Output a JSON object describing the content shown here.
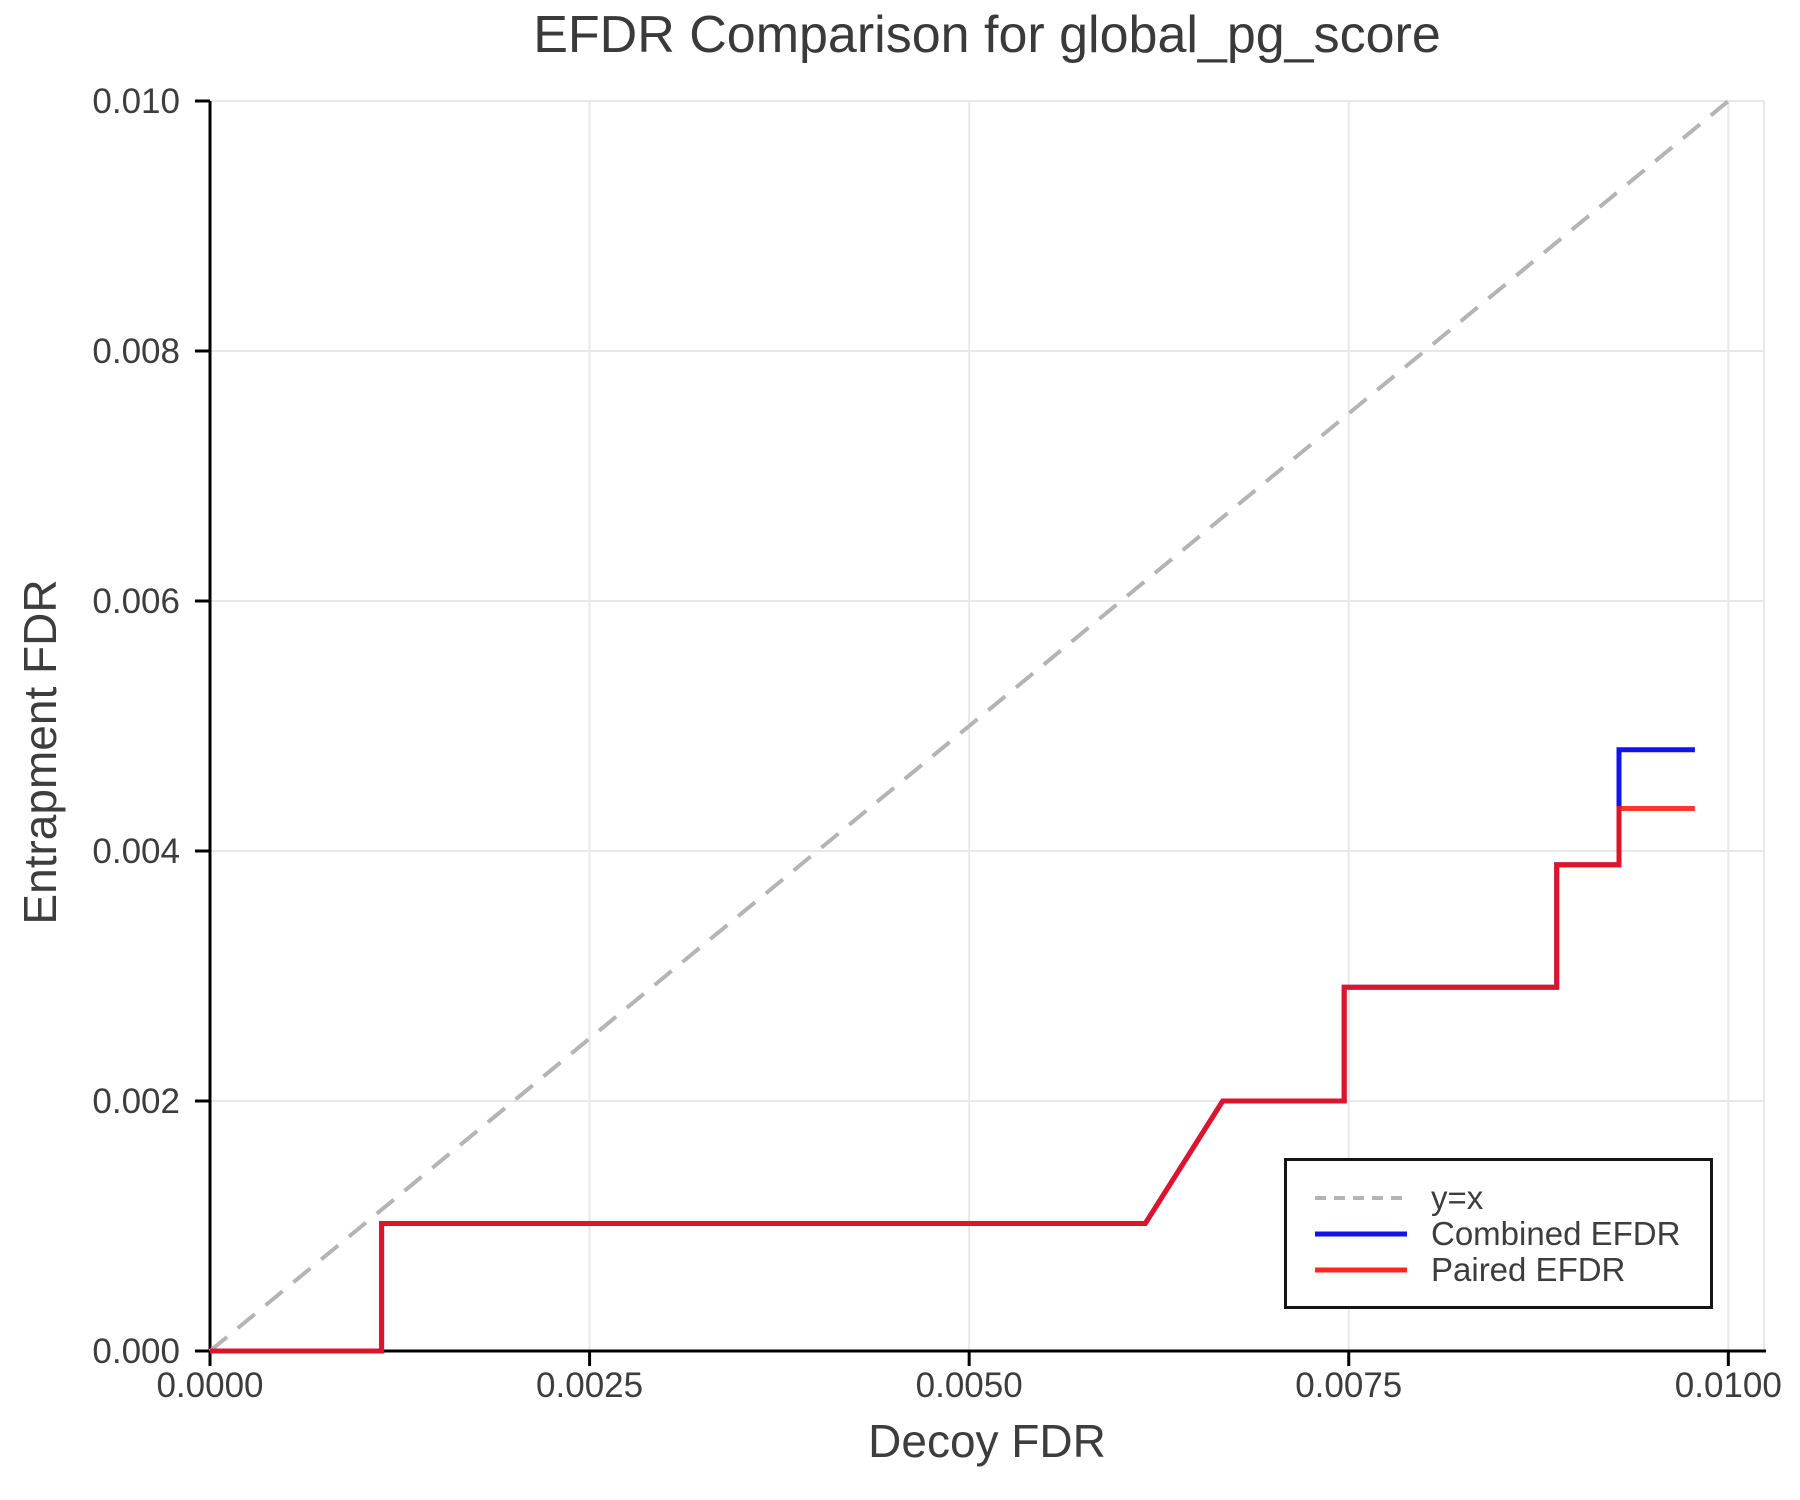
{
  "chart_data": {
    "type": "line",
    "title": "EFDR Comparison for global_pg_score",
    "xlabel": "Decoy FDR",
    "ylabel": "Entrapment FDR",
    "xlim": [
      0.0,
      0.010235
    ],
    "ylim": [
      0.0,
      0.01
    ],
    "grid": true,
    "legend_position": "lower right",
    "colors": {
      "grid": "#e8e8e8",
      "spine": "#000000",
      "text": "#3d3d3d",
      "background": "#ffffff"
    },
    "xticks": [
      {
        "value": 0.0,
        "label": "0.0000"
      },
      {
        "value": 0.0025,
        "label": "0.0025"
      },
      {
        "value": 0.005,
        "label": "0.0050"
      },
      {
        "value": 0.0075,
        "label": "0.0075"
      },
      {
        "value": 0.01,
        "label": "0.0100"
      }
    ],
    "yticks": [
      {
        "value": 0.0,
        "label": "0.000"
      },
      {
        "value": 0.002,
        "label": "0.002"
      },
      {
        "value": 0.004,
        "label": "0.004"
      },
      {
        "value": 0.006,
        "label": "0.006"
      },
      {
        "value": 0.008,
        "label": "0.008"
      },
      {
        "value": 0.01,
        "label": "0.010"
      }
    ],
    "series": [
      {
        "id": "y-equals-x",
        "name": "y=x",
        "color": "#b4b4b4",
        "width": 4,
        "dash": "22 14",
        "legend_dash": "11 8",
        "points": [
          [
            0.0,
            0.0
          ],
          [
            0.01,
            0.01
          ]
        ]
      },
      {
        "id": "combined-efdr",
        "name": "Combined EFDR",
        "color": "#1212f0",
        "width": 5,
        "points": [
          [
            0.0,
            0.0
          ],
          [
            0.00113,
            0.0
          ],
          [
            0.00113,
            0.00102
          ],
          [
            0.00616,
            0.00102
          ],
          [
            0.00667,
            0.002
          ],
          [
            0.00747,
            0.002
          ],
          [
            0.00747,
            0.00291
          ],
          [
            0.00887,
            0.00291
          ],
          [
            0.00887,
            0.00389
          ],
          [
            0.00928,
            0.00389
          ],
          [
            0.00928,
            0.00481
          ],
          [
            0.00978,
            0.00481
          ]
        ]
      },
      {
        "id": "paired-efdr",
        "name": "Paired EFDR",
        "color": "#ff150a",
        "width": 5,
        "opacity": 0.86,
        "points": [
          [
            0.0,
            0.0
          ],
          [
            0.00113,
            0.0
          ],
          [
            0.00113,
            0.00102
          ],
          [
            0.00616,
            0.00102
          ],
          [
            0.00667,
            0.002
          ],
          [
            0.00747,
            0.002
          ],
          [
            0.00747,
            0.00291
          ],
          [
            0.00887,
            0.00291
          ],
          [
            0.00887,
            0.00389
          ],
          [
            0.00928,
            0.00389
          ],
          [
            0.00928,
            0.00434
          ],
          [
            0.00978,
            0.00434
          ]
        ]
      }
    ]
  }
}
